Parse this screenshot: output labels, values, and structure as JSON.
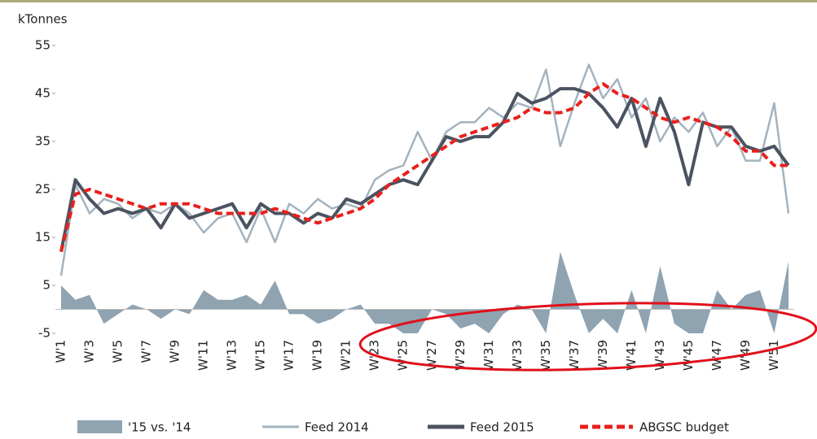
{
  "chart_data": {
    "type": "line",
    "y_label": "kTonnes",
    "categories": [
      "W'1",
      null,
      "W'3",
      null,
      "W'5",
      null,
      "W'7",
      null,
      "W'9",
      null,
      "W'11",
      null,
      "W'13",
      null,
      "W'15",
      null,
      "W'17",
      null,
      "W'19",
      null,
      "W'21",
      null,
      "W'23",
      null,
      "W'25",
      null,
      "W'27",
      null,
      "W'29",
      null,
      "W'31",
      null,
      "W'33",
      null,
      "W'35",
      null,
      "W'37",
      null,
      "W'39",
      null,
      "W'41",
      null,
      "W'43",
      null,
      "W'45",
      null,
      "W'47",
      null,
      "W'49",
      null,
      "W'51",
      null
    ],
    "series": [
      {
        "name": "'15 vs. '14",
        "type": "area",
        "color": "#8fa3b1",
        "values": [
          5,
          2,
          3,
          -3,
          -1,
          1,
          0,
          -2,
          0,
          -1,
          4,
          2,
          2,
          3,
          1,
          6,
          -1,
          -1,
          -3,
          -2,
          0,
          1,
          -3,
          -3,
          -5,
          -5,
          0,
          -1,
          -4,
          -3,
          -5,
          -1,
          1,
          0,
          -5,
          12,
          3,
          -5,
          -2,
          -5,
          4,
          -5,
          9,
          -3,
          -5,
          -5,
          4,
          0,
          3,
          4,
          -5,
          10
        ]
      },
      {
        "name": "Feed 2014",
        "type": "line",
        "color": "#a3b3bf",
        "values": [
          7,
          26,
          20,
          23,
          22,
          19,
          21,
          20,
          22,
          20,
          16,
          19,
          20,
          14,
          21,
          14,
          22,
          20,
          23,
          21,
          22,
          21,
          27,
          29,
          30,
          37,
          31,
          37,
          39,
          39,
          42,
          40,
          43,
          42,
          50,
          34,
          43,
          51,
          44,
          48,
          40,
          44,
          35,
          40,
          37,
          41,
          34,
          38,
          31,
          31,
          43,
          20
        ]
      },
      {
        "name": "Feed 2015",
        "type": "line",
        "color": "#4b5361",
        "values": [
          12,
          27,
          23,
          20,
          21,
          20,
          21,
          17,
          22,
          19,
          20,
          21,
          22,
          17,
          22,
          20,
          20,
          18,
          20,
          19,
          23,
          22,
          24,
          26,
          27,
          26,
          31,
          36,
          35,
          36,
          36,
          39,
          45,
          43,
          44,
          46,
          46,
          45,
          42,
          38,
          44,
          34,
          44,
          37,
          26,
          39,
          38,
          38,
          34,
          33,
          34,
          30
        ]
      },
      {
        "name": "ABGSC budget",
        "type": "dashed",
        "color": "#e8201c",
        "values": [
          12,
          24,
          25,
          24,
          23,
          22,
          21,
          22,
          22,
          22,
          21,
          20,
          20,
          20,
          20,
          21,
          20,
          19,
          18,
          19,
          20,
          21,
          23,
          26,
          28,
          30,
          32,
          34,
          36,
          37,
          38,
          39,
          40,
          42,
          41,
          41,
          42,
          45,
          47,
          45,
          44,
          42,
          40,
          39,
          40,
          39,
          38,
          36,
          33,
          33,
          30,
          30
        ]
      }
    ],
    "ylim": [
      -5,
      55
    ],
    "yticks": [
      -5,
      5,
      15,
      25,
      35,
      45,
      55
    ],
    "legend": "bottom"
  }
}
